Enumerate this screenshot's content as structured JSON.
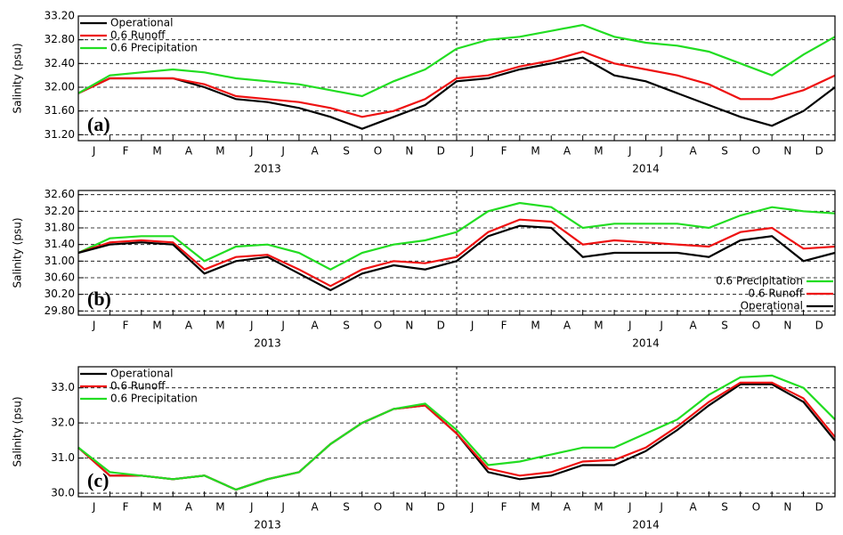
{
  "chart_data": [
    {
      "type": "line",
      "panel_label": "(a)",
      "ylabel": "Salinity (psu)",
      "legend": "upper left",
      "grid": true,
      "x": [
        0,
        1,
        2,
        3,
        4,
        5,
        6,
        7,
        8,
        9,
        10,
        11,
        12,
        13,
        14,
        15,
        16,
        17,
        18,
        19,
        20,
        21,
        22,
        23,
        24
      ],
      "xlim": [
        0,
        24
      ],
      "xticks": [
        {
          "value": 0.5,
          "label": "J"
        },
        {
          "value": 1.5,
          "label": "F"
        },
        {
          "value": 2.5,
          "label": "M"
        },
        {
          "value": 3.5,
          "label": "A"
        },
        {
          "value": 4.5,
          "label": "M"
        },
        {
          "value": 5.5,
          "label": "J"
        },
        {
          "value": 6.5,
          "label": "J"
        },
        {
          "value": 7.5,
          "label": "A"
        },
        {
          "value": 8.5,
          "label": "S"
        },
        {
          "value": 9.5,
          "label": "O"
        },
        {
          "value": 10.5,
          "label": "N"
        },
        {
          "value": 11.5,
          "label": "D"
        },
        {
          "value": 12.5,
          "label": "J"
        },
        {
          "value": 13.5,
          "label": "F"
        },
        {
          "value": 14.5,
          "label": "M"
        },
        {
          "value": 15.5,
          "label": "A"
        },
        {
          "value": 16.5,
          "label": "M"
        },
        {
          "value": 17.5,
          "label": "J"
        },
        {
          "value": 18.5,
          "label": "J"
        },
        {
          "value": 19.5,
          "label": "A"
        },
        {
          "value": 20.5,
          "label": "S"
        },
        {
          "value": 21.5,
          "label": "O"
        },
        {
          "value": 22.5,
          "label": "N"
        },
        {
          "value": 23.5,
          "label": "D"
        }
      ],
      "years": [
        "2013",
        "2014"
      ],
      "ylim": [
        31.1,
        33.2
      ],
      "yticks": [
        {
          "value": 31.2,
          "label": "31.20"
        },
        {
          "value": 31.6,
          "label": "31.60"
        },
        {
          "value": 32.0,
          "label": "32.00"
        },
        {
          "value": 32.4,
          "label": "32.40"
        },
        {
          "value": 32.8,
          "label": "32.80"
        },
        {
          "value": 33.2,
          "label": "33.20"
        }
      ],
      "series": [
        {
          "name": "Operational",
          "color": "#000000",
          "values": [
            31.9,
            32.15,
            32.15,
            32.15,
            32.0,
            31.8,
            31.75,
            31.65,
            31.5,
            31.3,
            31.5,
            31.7,
            32.1,
            32.15,
            32.3,
            32.4,
            32.5,
            32.2,
            32.1,
            31.9,
            31.7,
            31.5,
            31.35,
            31.6,
            32.0
          ]
        },
        {
          "name": "0.6 Runoff",
          "color": "#ee1111",
          "values": [
            31.9,
            32.15,
            32.15,
            32.15,
            32.05,
            31.85,
            31.8,
            31.75,
            31.65,
            31.5,
            31.6,
            31.8,
            32.15,
            32.2,
            32.35,
            32.45,
            32.6,
            32.4,
            32.3,
            32.2,
            32.05,
            31.8,
            31.8,
            31.95,
            32.2
          ]
        },
        {
          "name": "0.6 Precipitation",
          "color": "#22dd22",
          "values": [
            31.9,
            32.2,
            32.25,
            32.3,
            32.25,
            32.15,
            32.1,
            32.05,
            31.95,
            31.85,
            32.1,
            32.3,
            32.65,
            32.8,
            32.85,
            32.95,
            33.05,
            32.85,
            32.75,
            32.7,
            32.6,
            32.4,
            32.2,
            32.55,
            32.85
          ]
        }
      ]
    },
    {
      "type": "line",
      "panel_label": "(b)",
      "ylabel": "Salinity (psu)",
      "legend": "lower right",
      "grid": true,
      "x": [
        0,
        1,
        2,
        3,
        4,
        5,
        6,
        7,
        8,
        9,
        10,
        11,
        12,
        13,
        14,
        15,
        16,
        17,
        18,
        19,
        20,
        21,
        22,
        23,
        24
      ],
      "xlim": [
        0,
        24
      ],
      "xticks": [
        {
          "value": 0.5,
          "label": "J"
        },
        {
          "value": 1.5,
          "label": "F"
        },
        {
          "value": 2.5,
          "label": "M"
        },
        {
          "value": 3.5,
          "label": "A"
        },
        {
          "value": 4.5,
          "label": "M"
        },
        {
          "value": 5.5,
          "label": "J"
        },
        {
          "value": 6.5,
          "label": "J"
        },
        {
          "value": 7.5,
          "label": "A"
        },
        {
          "value": 8.5,
          "label": "S"
        },
        {
          "value": 9.5,
          "label": "O"
        },
        {
          "value": 10.5,
          "label": "N"
        },
        {
          "value": 11.5,
          "label": "D"
        },
        {
          "value": 12.5,
          "label": "J"
        },
        {
          "value": 13.5,
          "label": "F"
        },
        {
          "value": 14.5,
          "label": "M"
        },
        {
          "value": 15.5,
          "label": "A"
        },
        {
          "value": 16.5,
          "label": "M"
        },
        {
          "value": 17.5,
          "label": "J"
        },
        {
          "value": 18.5,
          "label": "J"
        },
        {
          "value": 19.5,
          "label": "A"
        },
        {
          "value": 20.5,
          "label": "S"
        },
        {
          "value": 21.5,
          "label": "O"
        },
        {
          "value": 22.5,
          "label": "N"
        },
        {
          "value": 23.5,
          "label": "D"
        }
      ],
      "years": [
        "2013",
        "2014"
      ],
      "ylim": [
        29.7,
        32.7
      ],
      "yticks": [
        {
          "value": 29.8,
          "label": "29.80"
        },
        {
          "value": 30.2,
          "label": "30.20"
        },
        {
          "value": 30.6,
          "label": "30.60"
        },
        {
          "value": 31.0,
          "label": "31.00"
        },
        {
          "value": 31.4,
          "label": "31.40"
        },
        {
          "value": 31.8,
          "label": "31.80"
        },
        {
          "value": 32.2,
          "label": "32.20"
        },
        {
          "value": 32.6,
          "label": "32.60"
        }
      ],
      "series": [
        {
          "name": "0.6 Precipitation",
          "color": "#22dd22",
          "values": [
            31.2,
            31.55,
            31.6,
            31.6,
            31.0,
            31.35,
            31.4,
            31.2,
            30.8,
            31.2,
            31.4,
            31.5,
            31.7,
            32.2,
            32.4,
            32.3,
            31.8,
            31.9,
            31.9,
            31.9,
            31.8,
            32.1,
            32.3,
            32.2,
            32.15
          ]
        },
        {
          "name": "0.6 Runoff",
          "color": "#ee1111",
          "values": [
            31.2,
            31.45,
            31.5,
            31.45,
            30.8,
            31.1,
            31.15,
            30.8,
            30.4,
            30.8,
            31.0,
            30.95,
            31.1,
            31.7,
            32.0,
            31.95,
            31.4,
            31.5,
            31.45,
            31.4,
            31.35,
            31.7,
            31.8,
            31.3,
            31.35
          ]
        },
        {
          "name": "Operational",
          "color": "#000000",
          "values": [
            31.2,
            31.4,
            31.45,
            31.4,
            30.7,
            31.0,
            31.1,
            30.7,
            30.3,
            30.7,
            30.9,
            30.8,
            31.0,
            31.6,
            31.85,
            31.8,
            31.1,
            31.2,
            31.2,
            31.2,
            31.1,
            31.5,
            31.6,
            31.0,
            31.2
          ]
        }
      ]
    },
    {
      "type": "line",
      "panel_label": "(c)",
      "ylabel": "Salinity (psu)",
      "legend": "upper left",
      "grid": true,
      "x": [
        0,
        1,
        2,
        3,
        4,
        5,
        6,
        7,
        8,
        9,
        10,
        11,
        12,
        13,
        14,
        15,
        16,
        17,
        18,
        19,
        20,
        21,
        22,
        23,
        24
      ],
      "xlim": [
        0,
        24
      ],
      "xticks": [
        {
          "value": 0.5,
          "label": "J"
        },
        {
          "value": 1.5,
          "label": "F"
        },
        {
          "value": 2.5,
          "label": "M"
        },
        {
          "value": 3.5,
          "label": "A"
        },
        {
          "value": 4.5,
          "label": "M"
        },
        {
          "value": 5.5,
          "label": "J"
        },
        {
          "value": 6.5,
          "label": "J"
        },
        {
          "value": 7.5,
          "label": "A"
        },
        {
          "value": 8.5,
          "label": "S"
        },
        {
          "value": 9.5,
          "label": "O"
        },
        {
          "value": 10.5,
          "label": "N"
        },
        {
          "value": 11.5,
          "label": "D"
        },
        {
          "value": 12.5,
          "label": "J"
        },
        {
          "value": 13.5,
          "label": "F"
        },
        {
          "value": 14.5,
          "label": "M"
        },
        {
          "value": 15.5,
          "label": "A"
        },
        {
          "value": 16.5,
          "label": "M"
        },
        {
          "value": 17.5,
          "label": "J"
        },
        {
          "value": 18.5,
          "label": "J"
        },
        {
          "value": 19.5,
          "label": "A"
        },
        {
          "value": 20.5,
          "label": "S"
        },
        {
          "value": 21.5,
          "label": "O"
        },
        {
          "value": 22.5,
          "label": "N"
        },
        {
          "value": 23.5,
          "label": "D"
        }
      ],
      "years": [
        "2013",
        "2014"
      ],
      "ylim": [
        29.9,
        33.6
      ],
      "yticks": [
        {
          "value": 30,
          "label": "30.0"
        },
        {
          "value": 31,
          "label": "31.0"
        },
        {
          "value": 32,
          "label": "32.0"
        },
        {
          "value": 33,
          "label": "33.0"
        }
      ],
      "series": [
        {
          "name": "Operational",
          "color": "#000000",
          "values": [
            31.3,
            30.5,
            30.5,
            30.4,
            30.5,
            30.1,
            30.4,
            30.6,
            31.4,
            32.0,
            32.4,
            32.5,
            31.7,
            30.6,
            30.4,
            30.5,
            30.8,
            30.8,
            31.2,
            31.8,
            32.5,
            33.1,
            33.1,
            32.6,
            31.5
          ]
        },
        {
          "name": "0.6 Runoff",
          "color": "#ee1111",
          "values": [
            31.3,
            30.5,
            30.5,
            30.4,
            30.5,
            30.1,
            30.4,
            30.6,
            31.4,
            32.0,
            32.4,
            32.5,
            31.7,
            30.7,
            30.5,
            30.6,
            30.9,
            30.95,
            31.3,
            31.9,
            32.6,
            33.15,
            33.15,
            32.7,
            31.6
          ]
        },
        {
          "name": "0.6 Precipitation",
          "color": "#22dd22",
          "values": [
            31.3,
            30.6,
            30.5,
            30.4,
            30.5,
            30.1,
            30.4,
            30.6,
            31.4,
            32.0,
            32.4,
            32.55,
            31.8,
            30.8,
            30.9,
            31.1,
            31.3,
            31.3,
            31.7,
            32.1,
            32.8,
            33.3,
            33.35,
            33.0,
            32.1
          ]
        }
      ]
    }
  ]
}
